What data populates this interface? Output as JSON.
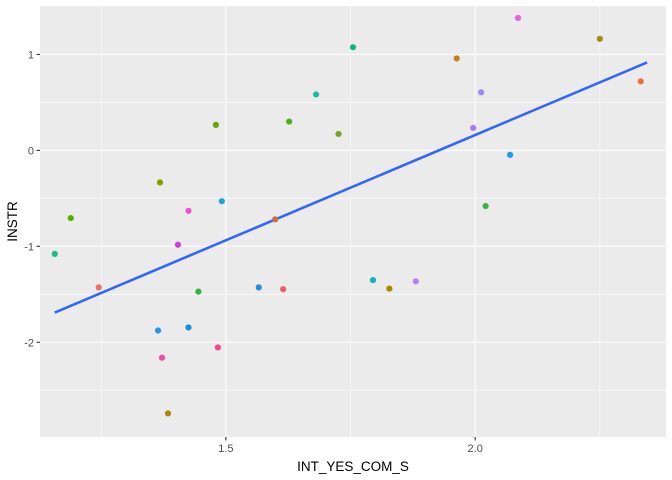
{
  "chart_data": {
    "type": "scatter",
    "xlabel": "INT_YES_COM_S",
    "ylabel": "INSTR",
    "xlim": [
      1.1273,
      2.3827
    ],
    "ylim": [
      -2.9877,
      1.5053
    ],
    "x_ticks": [
      1.5,
      2.0
    ],
    "x_tick_labels": [
      "1.5",
      "2.0"
    ],
    "x_minor_ticks": [
      1.25,
      1.75,
      2.25
    ],
    "y_ticks": [
      -2,
      -1,
      0,
      1
    ],
    "y_tick_labels": [
      "-2",
      "-1",
      "0",
      "1"
    ],
    "y_minor_ticks": [
      -2.5,
      -1.5,
      -0.5,
      0.5
    ],
    "grid": true,
    "background": "#ebebeb",
    "grid_color": "#ffffff",
    "trend_line": {
      "color": "#3366ff",
      "x": [
        1.157,
        2.3447
      ],
      "y": [
        -1.69,
        0.917
      ]
    },
    "points": [
      {
        "x": 1.157,
        "y": -1.079,
        "color": "#19bf88"
      },
      {
        "x": 1.189,
        "y": -0.7058,
        "color": "#5bab00"
      },
      {
        "x": 1.245,
        "y": -1.4279,
        "color": "#f2705f"
      },
      {
        "x": 1.364,
        "y": -1.8777,
        "color": "#1e9ae6"
      },
      {
        "x": 1.368,
        "y": -0.3337,
        "color": "#8e9c00"
      },
      {
        "x": 1.372,
        "y": -2.1615,
        "color": "#f649a9"
      },
      {
        "x": 1.384,
        "y": -2.7417,
        "color": "#b38800"
      },
      {
        "x": 1.404,
        "y": -0.9833,
        "color": "#cc3fe0"
      },
      {
        "x": 1.425,
        "y": -0.6302,
        "color": "#f54ed2"
      },
      {
        "x": 1.425,
        "y": -1.8461,
        "color": "#1490e0"
      },
      {
        "x": 1.445,
        "y": -1.4721,
        "color": "#34b43a"
      },
      {
        "x": 1.48,
        "y": 0.2661,
        "color": "#6aa600"
      },
      {
        "x": 1.484,
        "y": -2.0543,
        "color": "#ed4b8e"
      },
      {
        "x": 1.492,
        "y": -0.5293,
        "color": "#14a9d9"
      },
      {
        "x": 1.566,
        "y": -1.4279,
        "color": "#1d91e8"
      },
      {
        "x": 1.599,
        "y": -0.7184,
        "color": "#cc6f3c"
      },
      {
        "x": 1.615,
        "y": -1.4469,
        "color": "#ef5b6d"
      },
      {
        "x": 1.627,
        "y": 0.3007,
        "color": "#4fb013"
      },
      {
        "x": 1.681,
        "y": 0.5836,
        "color": "#15bfa3"
      },
      {
        "x": 1.726,
        "y": 0.1715,
        "color": "#78a31a"
      },
      {
        "x": 1.755,
        "y": 1.0754,
        "color": "#14b67d"
      },
      {
        "x": 1.795,
        "y": -1.3522,
        "color": "#1aadc2"
      },
      {
        "x": 1.828,
        "y": -1.4406,
        "color": "#a48b00"
      },
      {
        "x": 1.881,
        "y": -1.365,
        "color": "#b67ef2"
      },
      {
        "x": 1.963,
        "y": 0.9587,
        "color": "#c97d18"
      },
      {
        "x": 1.996,
        "y": 0.2346,
        "color": "#aa7cf0"
      },
      {
        "x": 2.012,
        "y": 0.6057,
        "color": "#9f86f4"
      },
      {
        "x": 2.021,
        "y": -0.5798,
        "color": "#39b53d"
      },
      {
        "x": 2.07,
        "y": -0.0463,
        "color": "#1a9cf0"
      },
      {
        "x": 2.086,
        "y": 1.3804,
        "color": "#e862e2"
      },
      {
        "x": 2.25,
        "y": 1.163,
        "color": "#9e8e0b"
      },
      {
        "x": 2.332,
        "y": 0.7192,
        "color": "#ef6c4a"
      }
    ]
  }
}
